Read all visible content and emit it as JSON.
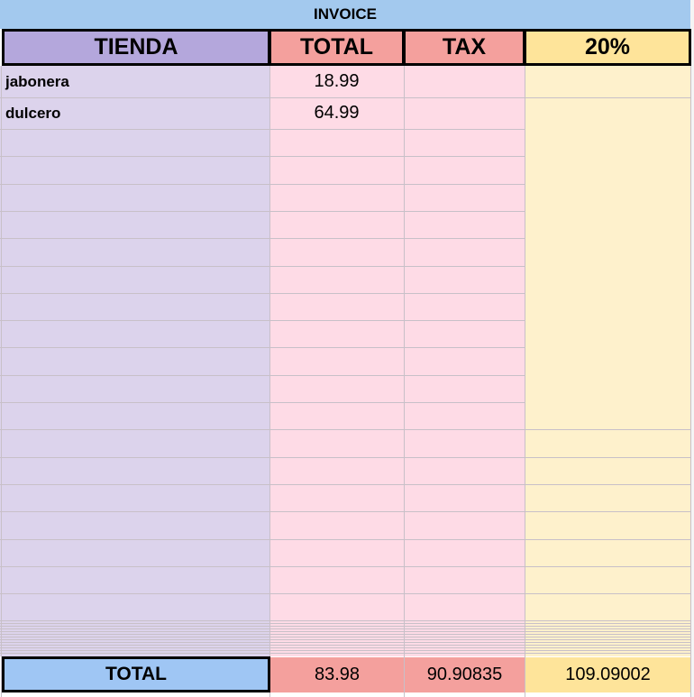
{
  "title": "INVOICE",
  "headers": [
    "TIENDA",
    "TOTAL",
    "TAX",
    "20%"
  ],
  "rows": [
    [
      "jabonera",
      18.99
    ],
    [
      "dulcero",
      64.99
    ]
  ],
  "totals": {
    "label": "TOTAL",
    "values": [
      83.98,
      90.90835,
      109.09002
    ]
  }
}
